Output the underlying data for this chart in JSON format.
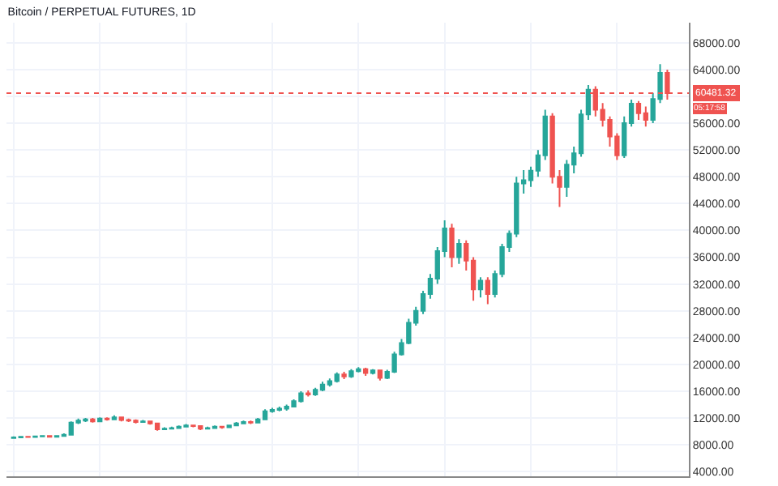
{
  "chart_data": {
    "type": "candlestick",
    "title": "Bitcoin / PERPETUAL FUTURES, 1D",
    "categories": [
      null,
      null,
      null,
      null,
      null,
      null,
      null,
      null,
      null,
      null,
      null,
      null,
      null,
      null,
      null,
      null,
      null,
      null,
      null,
      null,
      null,
      null,
      null,
      null,
      null,
      null,
      null,
      null,
      null,
      null,
      null,
      null,
      null,
      null,
      null,
      null,
      null,
      null,
      null,
      null,
      null,
      null,
      null,
      null,
      null,
      null,
      null,
      null,
      null,
      null,
      null,
      null,
      null,
      null,
      null,
      null,
      null,
      null,
      null,
      null,
      null,
      null,
      null,
      null,
      null,
      null,
      null,
      null,
      null,
      null,
      null,
      null,
      null,
      null,
      null,
      null,
      null,
      null,
      null,
      null,
      null,
      null,
      null,
      null,
      null,
      null,
      null,
      null,
      null,
      null,
      null,
      null
    ],
    "ohlc": [
      [
        9000,
        9250,
        8900,
        9100
      ],
      [
        9100,
        9300,
        9000,
        9200
      ],
      [
        9200,
        9300,
        9050,
        9150
      ],
      [
        9150,
        9350,
        9100,
        9250
      ],
      [
        9250,
        9400,
        9150,
        9300
      ],
      [
        9300,
        9350,
        9100,
        9200
      ],
      [
        9200,
        9400,
        9150,
        9300
      ],
      [
        9300,
        9700,
        9250,
        9500
      ],
      [
        9500,
        11500,
        9400,
        11300
      ],
      [
        11300,
        11900,
        11100,
        11600
      ],
      [
        11600,
        12000,
        11400,
        11800
      ],
      [
        11800,
        12000,
        11300,
        11500
      ],
      [
        11500,
        12100,
        11400,
        11900
      ],
      [
        11900,
        12100,
        11600,
        11800
      ],
      [
        11800,
        12400,
        11700,
        12100
      ],
      [
        12100,
        12200,
        11500,
        11700
      ],
      [
        11700,
        11900,
        11400,
        11600
      ],
      [
        11600,
        11800,
        11200,
        11400
      ],
      [
        11400,
        11700,
        11300,
        11500
      ],
      [
        11500,
        11600,
        11000,
        11200
      ],
      [
        11200,
        11300,
        10100,
        10300
      ],
      [
        10300,
        10600,
        10200,
        10400
      ],
      [
        10400,
        10700,
        10300,
        10500
      ],
      [
        10500,
        10900,
        10400,
        10700
      ],
      [
        10700,
        11100,
        10600,
        10900
      ],
      [
        10900,
        11000,
        10600,
        10800
      ],
      [
        10800,
        10900,
        10200,
        10400
      ],
      [
        10400,
        10700,
        10300,
        10500
      ],
      [
        10500,
        10900,
        10400,
        10700
      ],
      [
        10700,
        10800,
        10400,
        10600
      ],
      [
        10600,
        11000,
        10500,
        10900
      ],
      [
        10900,
        11400,
        10800,
        11200
      ],
      [
        11200,
        11600,
        11100,
        11400
      ],
      [
        11400,
        11600,
        11100,
        11300
      ],
      [
        11300,
        12000,
        11200,
        11800
      ],
      [
        11800,
        13300,
        11700,
        13000
      ],
      [
        13000,
        13500,
        12800,
        13200
      ],
      [
        13200,
        13700,
        13000,
        13400
      ],
      [
        13400,
        14000,
        13100,
        13700
      ],
      [
        13700,
        14800,
        13600,
        14500
      ],
      [
        14500,
        16000,
        14300,
        15700
      ],
      [
        15700,
        16100,
        15200,
        15500
      ],
      [
        15500,
        16500,
        15300,
        16200
      ],
      [
        16200,
        17400,
        16000,
        17000
      ],
      [
        17000,
        17900,
        16700,
        17500
      ],
      [
        17500,
        18800,
        17300,
        18500
      ],
      [
        18500,
        18900,
        17800,
        18200
      ],
      [
        18200,
        19300,
        18000,
        19000
      ],
      [
        19000,
        19600,
        18800,
        19300
      ],
      [
        19300,
        19500,
        18300,
        18700
      ],
      [
        18700,
        19300,
        18500,
        19100
      ],
      [
        19100,
        19200,
        17600,
        18000
      ],
      [
        18000,
        19200,
        17800,
        18900
      ],
      [
        18900,
        21900,
        18700,
        21500
      ],
      [
        21500,
        23800,
        21300,
        23200
      ],
      [
        23200,
        26800,
        23000,
        26200
      ],
      [
        26200,
        28600,
        25800,
        28000
      ],
      [
        28000,
        31000,
        27500,
        30500
      ],
      [
        30500,
        33500,
        29800,
        32800
      ],
      [
        32800,
        37500,
        32000,
        36900
      ],
      [
        36900,
        41500,
        36000,
        40300
      ],
      [
        40300,
        41000,
        34500,
        36000
      ],
      [
        36000,
        38700,
        35000,
        38000
      ],
      [
        38000,
        38500,
        34000,
        35500
      ],
      [
        35500,
        36000,
        29500,
        31200
      ],
      [
        31200,
        33000,
        30000,
        32500
      ],
      [
        32500,
        33000,
        29000,
        30500
      ],
      [
        30500,
        34000,
        30000,
        33500
      ],
      [
        33500,
        38000,
        33000,
        37500
      ],
      [
        37500,
        40000,
        36800,
        39500
      ],
      [
        39500,
        48000,
        39000,
        47000
      ],
      [
        47000,
        49000,
        45500,
        47500
      ],
      [
        47500,
        49500,
        46500,
        48900
      ],
      [
        48900,
        52000,
        48000,
        51200
      ],
      [
        51200,
        58000,
        50500,
        57000
      ],
      [
        57000,
        57500,
        47000,
        48000
      ],
      [
        48000,
        49000,
        43500,
        46500
      ],
      [
        46500,
        50500,
        45000,
        49800
      ],
      [
        49800,
        52500,
        48500,
        51500
      ],
      [
        51500,
        58000,
        51000,
        57300
      ],
      [
        57300,
        61700,
        56500,
        61000
      ],
      [
        61000,
        61500,
        57000,
        58000
      ],
      [
        58000,
        59000,
        55500,
        56500
      ],
      [
        56500,
        57000,
        52500,
        54000
      ],
      [
        54000,
        54500,
        50500,
        51200
      ],
      [
        51200,
        57000,
        50800,
        56000
      ],
      [
        56000,
        59500,
        55500,
        58900
      ],
      [
        58900,
        59300,
        56500,
        57500
      ],
      [
        57500,
        58500,
        55500,
        56500
      ],
      [
        56500,
        60500,
        56000,
        59600
      ],
      [
        59600,
        64800,
        59000,
        63500
      ],
      [
        63500,
        64000,
        59500,
        60481.32
      ]
    ],
    "colors": [
      "#26a69a",
      "#26a69a",
      "#ef5350",
      "#26a69a",
      "#26a69a",
      "#ef5350",
      "#26a69a",
      "#26a69a",
      "#26a69a",
      "#26a69a",
      "#26a69a",
      "#ef5350",
      "#26a69a",
      "#ef5350",
      "#26a69a",
      "#ef5350",
      "#ef5350",
      "#ef5350",
      "#26a69a",
      "#ef5350",
      "#ef5350",
      "#26a69a",
      "#26a69a",
      "#26a69a",
      "#26a69a",
      "#ef5350",
      "#ef5350",
      "#26a69a",
      "#26a69a",
      "#ef5350",
      "#26a69a",
      "#26a69a",
      "#26a69a",
      "#ef5350",
      "#26a69a",
      "#26a69a",
      "#26a69a",
      "#26a69a",
      "#26a69a",
      "#26a69a",
      "#26a69a",
      "#ef5350",
      "#26a69a",
      "#26a69a",
      "#26a69a",
      "#26a69a",
      "#ef5350",
      "#26a69a",
      "#26a69a",
      "#ef5350",
      "#26a69a",
      "#ef5350",
      "#26a69a",
      "#26a69a",
      "#26a69a",
      "#26a69a",
      "#26a69a",
      "#26a69a",
      "#26a69a",
      "#26a69a",
      "#26a69a",
      "#ef5350",
      "#26a69a",
      "#ef5350",
      "#ef5350",
      "#26a69a",
      "#ef5350",
      "#26a69a",
      "#26a69a",
      "#26a69a",
      "#26a69a",
      "#26a69a",
      "#26a69a",
      "#26a69a",
      "#26a69a",
      "#ef5350",
      "#ef5350",
      "#26a69a",
      "#26a69a",
      "#26a69a",
      "#26a69a",
      "#ef5350",
      "#ef5350",
      "#ef5350",
      "#ef5350",
      "#26a69a",
      "#26a69a",
      "#ef5350",
      "#ef5350",
      "#26a69a",
      "#26a69a",
      "#ef5350"
    ],
    "ylim": [
      3300,
      71000
    ],
    "yticks": [
      {
        "value": 4000,
        "label": "4000.00"
      },
      {
        "value": 8000,
        "label": "8000.00"
      },
      {
        "value": 12000,
        "label": "12000.00"
      },
      {
        "value": 16000,
        "label": "16000.00"
      },
      {
        "value": 20000,
        "label": "20000.00"
      },
      {
        "value": 24000,
        "label": "24000.00"
      },
      {
        "value": 28000,
        "label": "28000.00"
      },
      {
        "value": 32000,
        "label": "32000.00"
      },
      {
        "value": 36000,
        "label": "36000.00"
      },
      {
        "value": 40000,
        "label": "40000.00"
      },
      {
        "value": 44000,
        "label": "44000.00"
      },
      {
        "value": 48000,
        "label": "48000.00"
      },
      {
        "value": 52000,
        "label": "52000.00"
      },
      {
        "value": 56000,
        "label": "56000.00"
      },
      {
        "value": 60000,
        "label": null
      },
      {
        "value": 64000,
        "label": "64000.00"
      },
      {
        "value": 68000,
        "label": "68000.00"
      }
    ],
    "ref_lines": [
      {
        "axis": "y",
        "value": 60481.32,
        "label": "60481.32",
        "color": "#ef5350",
        "line_style": "dotted"
      }
    ],
    "annotations": [
      "05:17:58"
    ],
    "grid": true,
    "tick_labels": "y"
  }
}
